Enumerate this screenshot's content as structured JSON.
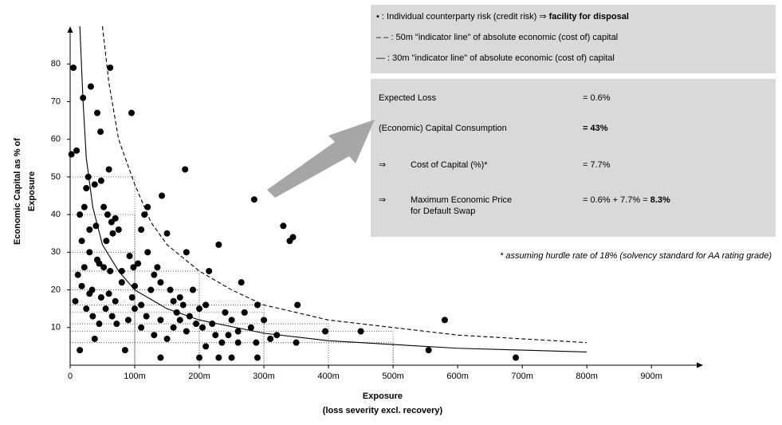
{
  "chart_data": {
    "type": "scatter",
    "xlabel": [
      "Exposure",
      "(loss severity excl. recovery)"
    ],
    "ylabel": [
      "Economic Capital as % of",
      "Exposure"
    ],
    "xlim": [
      0,
      980
    ],
    "ylim": [
      0,
      90
    ],
    "xticks": [
      0,
      {
        "value": 100,
        "label": "100m"
      },
      {
        "value": 200,
        "label": "200m"
      },
      {
        "value": 300,
        "label": "300m"
      },
      {
        "value": 400,
        "label": "400m"
      },
      {
        "value": 500,
        "label": "500m"
      },
      {
        "value": 600,
        "label": "600m"
      },
      {
        "value": 700,
        "label": "700m"
      },
      {
        "value": 800,
        "label": "800m"
      },
      {
        "value": 900,
        "label": "900m"
      }
    ],
    "yticks": [
      10,
      20,
      30,
      40,
      50,
      60,
      70,
      80
    ],
    "color": "#000000",
    "x": [
      5,
      2,
      10,
      20,
      32,
      42,
      47,
      62,
      60,
      48,
      38,
      28,
      25,
      22,
      15,
      18,
      30,
      40,
      52,
      58,
      64,
      70,
      56,
      66,
      75,
      42,
      30,
      22,
      12,
      8,
      18,
      30,
      34,
      25,
      35,
      45,
      55,
      48,
      60,
      70,
      62,
      52,
      45,
      65,
      72,
      38,
      15,
      85,
      95,
      80,
      92,
      98,
      105,
      110,
      115,
      120,
      96,
      100,
      110,
      118,
      125,
      130,
      135,
      140,
      142,
      150,
      155,
      160,
      165,
      170,
      175,
      178,
      180,
      185,
      190,
      195,
      200,
      205,
      210,
      215,
      220,
      225,
      230,
      235,
      240,
      245,
      250,
      260,
      265,
      270,
      280,
      285,
      288,
      290,
      300,
      310,
      320,
      330,
      340,
      345,
      352,
      350,
      395,
      450,
      555,
      580,
      690,
      150,
      130,
      110,
      90,
      80,
      140,
      160,
      170,
      100,
      120,
      140,
      200,
      230,
      250,
      260,
      290,
      180,
      210
    ],
    "values": [
      79,
      56,
      57,
      71,
      74,
      67,
      62,
      79,
      52,
      49,
      48,
      50,
      47,
      42,
      40,
      33,
      36,
      37,
      42,
      40,
      38,
      39,
      33,
      35,
      36,
      28,
      30,
      26,
      24,
      17,
      21,
      19,
      20,
      15,
      13,
      11,
      15,
      18,
      19,
      17,
      25,
      26,
      27,
      13,
      11,
      7,
      4,
      4,
      67,
      22,
      29,
      26,
      27,
      36,
      40,
      42,
      18,
      15,
      16,
      13,
      20,
      24,
      26,
      22,
      45,
      35,
      20,
      17,
      14,
      12,
      16,
      52,
      30,
      13,
      20,
      11,
      15,
      10,
      16,
      25,
      11,
      8,
      32,
      6,
      14,
      8,
      12,
      9,
      22,
      14,
      10,
      44,
      6,
      16,
      12,
      7,
      8,
      37,
      33,
      34,
      16,
      6,
      9,
      9,
      4,
      12,
      2,
      7,
      8,
      10,
      12,
      25,
      12,
      10,
      18,
      21,
      30,
      2,
      2,
      2,
      2,
      6,
      2,
      9,
      5
    ],
    "lines": [
      {
        "style": "dashed",
        "x": [
          50,
          60,
          75,
          100,
          125,
          150,
          200,
          250,
          300,
          400,
          500,
          600,
          700,
          800
        ],
        "values": [
          90,
          75,
          60,
          48,
          38,
          32,
          25,
          20,
          16,
          12,
          10,
          8,
          7,
          6
        ]
      },
      {
        "style": "solid",
        "x": [
          15,
          20,
          25,
          35,
          50,
          75,
          100,
          150,
          200,
          300,
          400,
          500,
          600,
          700,
          800
        ],
        "values": [
          90,
          70,
          55,
          42,
          32,
          25,
          20,
          15,
          12,
          8.5,
          6.5,
          5.5,
          4.5,
          4,
          3.5
        ]
      }
    ],
    "reference_lines": [
      {
        "x": 100,
        "y": 50
      },
      {
        "x": 100,
        "y": 40
      },
      {
        "x": 100,
        "y": 30
      },
      {
        "x": 200,
        "y": 25
      },
      {
        "x": 200,
        "y": 20
      },
      {
        "x": 300,
        "y": 16
      },
      {
        "x": 300,
        "y": 14
      },
      {
        "x": 400,
        "y": 11
      },
      {
        "x": 500,
        "y": 9
      },
      {
        "x": 500,
        "y": 6
      }
    ],
    "legend_notes": [
      {
        "text": "• : Individual counterparty risk (credit risk) ⇒ ",
        "bold": "facility for disposal"
      },
      {
        "text": "– – : 50m \"indicator line\" of absolute economic (cost of) capital"
      },
      {
        "text": "— : 30m \"indicator line\" of absolute economic (cost of) capital"
      }
    ],
    "results": [
      {
        "label": "Expected Loss",
        "value": "= 0.6%"
      },
      {
        "label": "(Economic) Capital Consumption",
        "value_bold": "= 43%"
      },
      {
        "prefix": "⇒",
        "label": "Cost of Capital (%)*",
        "value": "= 7.7%"
      },
      {
        "prefix": "⇒",
        "label": "Maximum Economic Price",
        "label2": "for Default Swap",
        "value": "= 0.6% + 7.7% = ",
        "value_bold": "8.3%"
      }
    ],
    "footnote": "* assuming hurdle rate of 18% (solvency standard for AA rating grade)"
  }
}
